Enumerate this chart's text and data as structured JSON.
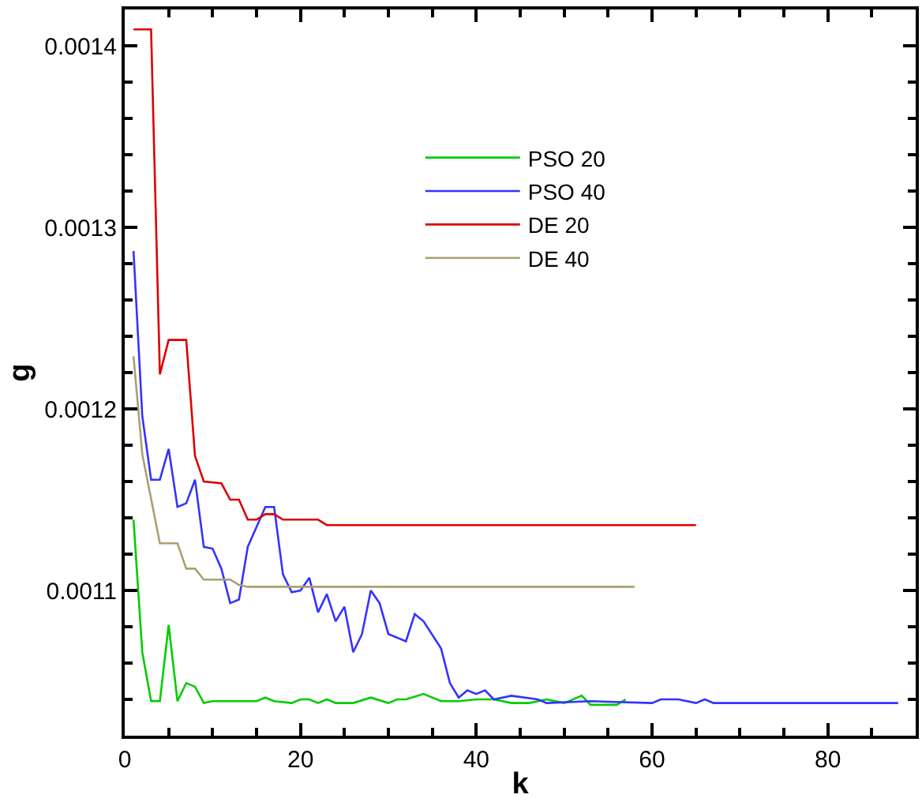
{
  "chart_data": {
    "type": "line",
    "xlabel": "k",
    "ylabel": "g",
    "xlim": [
      0,
      90
    ],
    "xticks": [
      0,
      20,
      40,
      60,
      80
    ],
    "ylim": [
      0.00102,
      0.00142
    ],
    "yticks": [
      0.0011,
      0.0012,
      0.0013,
      0.0014
    ],
    "legend": "top",
    "marker": "none",
    "line_style": "solid",
    "series": [
      {
        "name": "PSO 20",
        "color": "#00cc00",
        "x": [
          1,
          2,
          3,
          4,
          5,
          6,
          7,
          8,
          9,
          10,
          12,
          14,
          15,
          16,
          17,
          19,
          20,
          21,
          22,
          23,
          24,
          26,
          28,
          30,
          31,
          32,
          34,
          36,
          38,
          40,
          42,
          44,
          46,
          48,
          50,
          52,
          53,
          55,
          56,
          57
        ],
        "values": [
          0.001139,
          0.001066,
          0.001039,
          0.001039,
          0.001081,
          0.001039,
          0.001049,
          0.001047,
          0.001038,
          0.001039,
          0.001039,
          0.001039,
          0.001039,
          0.001041,
          0.001039,
          0.001038,
          0.00104,
          0.00104,
          0.001038,
          0.00104,
          0.001038,
          0.001038,
          0.001041,
          0.001038,
          0.00104,
          0.00104,
          0.001043,
          0.001039,
          0.001039,
          0.00104,
          0.00104,
          0.001038,
          0.001038,
          0.00104,
          0.001038,
          0.001042,
          0.001037,
          0.001037,
          0.001037,
          0.00104
        ]
      },
      {
        "name": "PSO 40",
        "color": "#3333ff",
        "x": [
          1,
          2,
          3,
          4,
          5,
          6,
          7,
          8,
          9,
          10,
          11,
          12,
          13,
          14,
          15,
          16,
          17,
          18,
          19,
          20,
          21,
          22,
          23,
          24,
          25,
          26,
          27,
          28,
          29,
          30,
          32,
          33,
          34,
          36,
          37,
          38,
          39,
          40,
          41,
          42,
          44,
          47,
          48,
          53,
          60,
          61,
          63,
          65,
          66,
          67,
          88
        ],
        "values": [
          0.001287,
          0.001196,
          0.001161,
          0.001161,
          0.001178,
          0.001146,
          0.001148,
          0.001161,
          0.001124,
          0.001123,
          0.001112,
          0.001093,
          0.001095,
          0.001124,
          0.001135,
          0.001146,
          0.001146,
          0.001109,
          0.001099,
          0.0011,
          0.001107,
          0.001088,
          0.001098,
          0.001083,
          0.001091,
          0.001066,
          0.001076,
          0.0011,
          0.001093,
          0.001076,
          0.001072,
          0.001087,
          0.001083,
          0.001068,
          0.001049,
          0.001041,
          0.001045,
          0.001043,
          0.001045,
          0.00104,
          0.001042,
          0.00104,
          0.001038,
          0.001039,
          0.001038,
          0.00104,
          0.00104,
          0.001038,
          0.00104,
          0.001038,
          0.001038
        ]
      },
      {
        "name": "DE 20",
        "color": "#dd0000",
        "x": [
          1,
          3,
          4,
          5,
          7,
          8,
          9,
          11,
          12,
          13,
          14,
          15,
          16,
          17,
          18,
          22,
          23,
          65
        ],
        "values": [
          0.001409,
          0.001409,
          0.001219,
          0.001238,
          0.001238,
          0.001174,
          0.00116,
          0.001159,
          0.00115,
          0.00115,
          0.001139,
          0.001139,
          0.001142,
          0.001142,
          0.001139,
          0.001139,
          0.001136,
          0.001136
        ]
      },
      {
        "name": "DE 40",
        "color": "#aaa070",
        "x": [
          1,
          2,
          4,
          6,
          7,
          8,
          9,
          12,
          13,
          14,
          58
        ],
        "values": [
          0.001229,
          0.001175,
          0.001126,
          0.001126,
          0.001112,
          0.001112,
          0.001106,
          0.001106,
          0.001103,
          0.001102,
          0.001102
        ]
      }
    ]
  }
}
